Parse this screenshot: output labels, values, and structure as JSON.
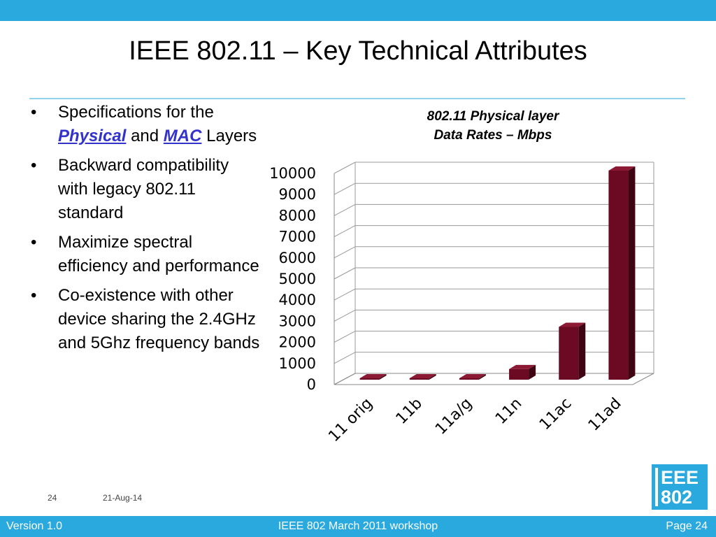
{
  "slide": {
    "title": "IEEE 802.11 – Key Technical Attributes",
    "bullets": [
      {
        "pre": "Specifications for the ",
        "link1": "Physical",
        "mid": " and ",
        "link2": "MAC",
        "post": " Layers"
      },
      {
        "text": "Backward compatibility with legacy 802.11 standard"
      },
      {
        "text": "Maximize spectral efficiency and performance"
      },
      {
        "text": "Co-existence with other device sharing the 2.4GHz and 5Ghz frequency bands"
      }
    ],
    "bullet_char": "•"
  },
  "chart_data": {
    "type": "bar",
    "title_line1": "802.11 Physical layer",
    "title_line2": "Data Rates – Mbps",
    "categories": [
      "11 orig",
      "11b",
      "11a/g",
      "11n",
      "11ac",
      "11ad"
    ],
    "values": [
      2,
      11,
      54,
      600,
      2600,
      10000
    ],
    "ylim": [
      0,
      10000
    ],
    "yticks": [
      0,
      1000,
      2000,
      3000,
      4000,
      5000,
      6000,
      7000,
      8000,
      9000,
      10000
    ],
    "grid": true,
    "style": "3d",
    "bar_color": "#6b0a22"
  },
  "footer": {
    "page_number": "24",
    "date": "21-Aug-14",
    "version": "Version 1.0",
    "event": "IEEE 802 March 2011 workshop",
    "page_label": "Page 24"
  },
  "logo": {
    "line1": "EEE",
    "line2": "802"
  },
  "colors": {
    "accent": "#2aa9de",
    "link": "#3333cc"
  }
}
